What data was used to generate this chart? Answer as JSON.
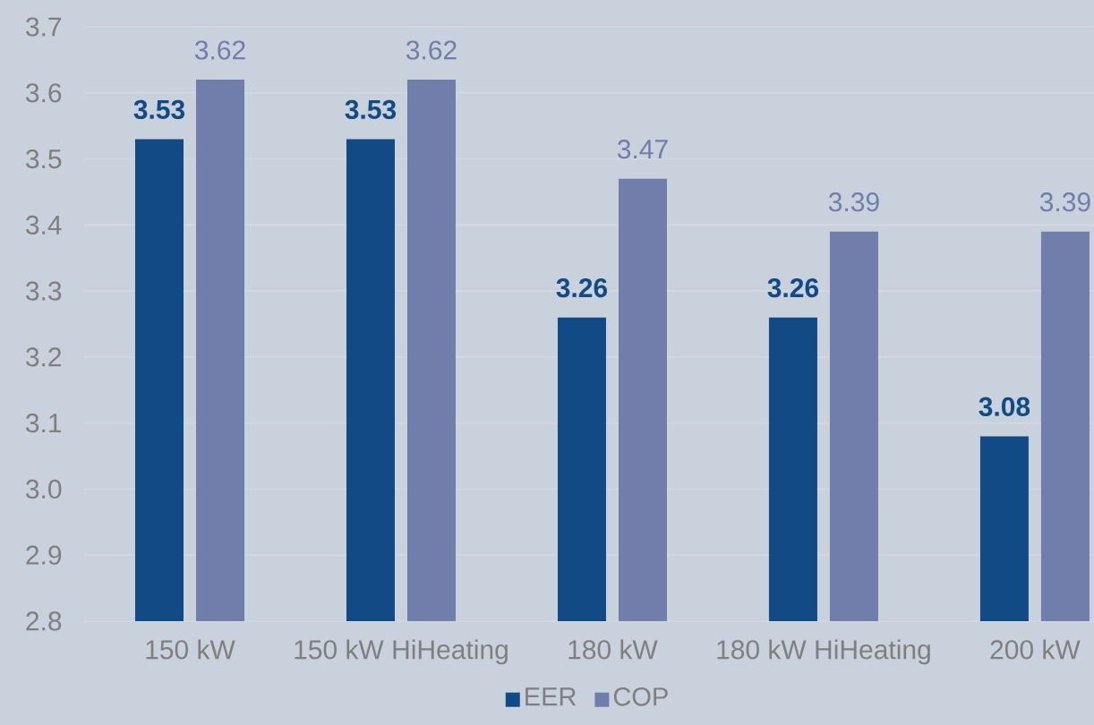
{
  "chart_data": {
    "type": "bar",
    "categories": [
      "150 kW",
      "150 kW HiHeating",
      "180 kW",
      "180 kW HiHeating",
      "200 kW"
    ],
    "series": [
      {
        "name": "EER",
        "color": "#124a86",
        "values": [
          3.53,
          3.53,
          3.26,
          3.26,
          3.08
        ]
      },
      {
        "name": "COP",
        "color": "#717dab",
        "values": [
          3.62,
          3.62,
          3.47,
          3.39,
          3.39
        ]
      }
    ],
    "ylim": [
      2.8,
      3.7
    ],
    "yticks": [
      2.8,
      2.9,
      {
        "value": 3,
        "label": "3.0"
      },
      3.1,
      3.2,
      3.3,
      3.4,
      3.5,
      3.6,
      3.7
    ],
    "grid": "y",
    "legend": "bottom",
    "data_labels": true
  }
}
